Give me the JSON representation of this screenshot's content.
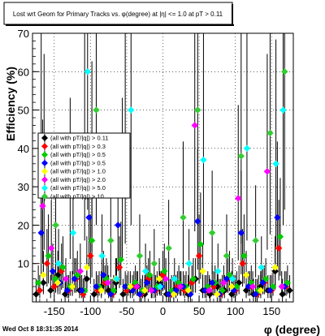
{
  "chart_data": {
    "type": "scatter",
    "title": "Lost wrt Geom for Primary Tracks vs. φ(degree) at |η| <= 1.0 at pT > 0.11",
    "xlabel": "φ (degree)",
    "ylabel": "Efficiency (%)",
    "xlim": [
      -180,
      180
    ],
    "ylim": [
      0,
      70
    ],
    "xticks": [
      -150,
      -100,
      -50,
      0,
      50,
      100,
      150
    ],
    "yticks": [
      10,
      20,
      30,
      40,
      50,
      60,
      70
    ],
    "grid": true,
    "legend_position": "left",
    "footer": "Wed Oct  8 18:31:35 2014",
    "series": [
      {
        "name": "(all with pT/|q|) > 0.11",
        "color": "#000000",
        "x": [
          -175,
          -165,
          -155,
          -145,
          -135,
          -125,
          -115,
          -105,
          -95,
          -85,
          -75,
          -65,
          -55,
          -45,
          -35,
          -25,
          -15,
          -5,
          5,
          15,
          25,
          35,
          45,
          55,
          65,
          75,
          85,
          95,
          105,
          115,
          125,
          135,
          145,
          155,
          165,
          175
        ],
        "y": [
          2,
          5,
          3,
          7,
          2,
          4,
          3,
          6,
          2,
          4,
          3,
          5,
          2,
          3,
          4,
          2,
          3,
          5,
          2,
          3,
          4,
          2,
          6,
          3,
          2,
          4,
          3,
          2,
          5,
          3,
          2,
          4,
          3,
          8,
          2,
          3
        ]
      },
      {
        "name": "(all with pT/|q|) > 0.3",
        "color": "#ff0000",
        "x": [
          -170,
          -160,
          -150,
          -140,
          -130,
          -120,
          -110,
          -100,
          -90,
          -80,
          -70,
          -60,
          -50,
          -40,
          -30,
          -20,
          -10,
          0,
          10,
          20,
          30,
          40,
          50,
          60,
          70,
          80,
          90,
          100,
          110,
          120,
          130,
          140,
          150,
          160,
          170
        ],
        "y": [
          3,
          10,
          4,
          8,
          3,
          6,
          2,
          12,
          3,
          5,
          2,
          9,
          3,
          4,
          2,
          6,
          3,
          7,
          2,
          4,
          3,
          5,
          12,
          3,
          4,
          2,
          6,
          3,
          10,
          4,
          2,
          5,
          3,
          14,
          4
        ]
      },
      {
        "name": "(all with pT/|q|) > 0.5",
        "color": "#00cc00",
        "x": [
          -172,
          -158,
          -148,
          -138,
          -128,
          -118,
          -108,
          -98,
          -88,
          -78,
          -68,
          -58,
          -48,
          -38,
          -28,
          -18,
          -8,
          2,
          12,
          22,
          32,
          42,
          52,
          62,
          72,
          82,
          92,
          102,
          112,
          122,
          132,
          142,
          152,
          162,
          172
        ],
        "y": [
          5,
          12,
          6,
          9,
          4,
          7,
          3,
          16,
          4,
          6,
          3,
          11,
          4,
          5,
          3,
          7,
          4,
          8,
          3,
          5,
          4,
          6,
          15,
          4,
          5,
          3,
          7,
          4,
          12,
          5,
          3,
          6,
          4,
          17,
          5
        ]
      },
      {
        "name": "(all with pT/|q|) > 0.5",
        "color": "#0000ff",
        "x": [
          -168,
          -152,
          -142,
          -132,
          -122,
          -112,
          -102,
          -92,
          -82,
          -72,
          -62,
          -52,
          -42,
          -32,
          -22,
          -12,
          -2,
          8,
          18,
          28,
          38,
          48,
          58,
          68,
          78,
          88,
          98,
          108,
          118,
          128,
          138,
          148,
          158,
          168
        ],
        "y": [
          18,
          8,
          5,
          3,
          6,
          3,
          22,
          4,
          7,
          2,
          20,
          4,
          3,
          2,
          5,
          3,
          4,
          2,
          3,
          4,
          2,
          21,
          3,
          5,
          2,
          6,
          3,
          18,
          4,
          2,
          5,
          3,
          22,
          4
        ]
      },
      {
        "name": "(all with pT/|q|) > 1.0",
        "color": "#ffff00",
        "x": [
          -165,
          -145,
          -125,
          -105,
          -85,
          -65,
          -45,
          -25,
          -5,
          15,
          35,
          55,
          75,
          95,
          115,
          135,
          155
        ],
        "y": [
          7,
          5,
          4,
          9,
          3,
          6,
          4,
          3,
          6,
          2,
          3,
          8,
          2,
          4,
          7,
          3,
          9
        ]
      },
      {
        "name": "(all with pT/|q|) > 2.0",
        "color": "#ff00ff",
        "x": [
          -166,
          -154,
          -134,
          -114,
          -98,
          -76,
          -56,
          -36,
          -16,
          4,
          24,
          44,
          64,
          84,
          104,
          124,
          144,
          164
        ],
        "y": [
          25,
          14,
          6,
          8,
          33,
          5,
          28,
          4,
          3,
          6,
          4,
          46,
          3,
          5,
          27,
          4,
          34,
          4
        ]
      },
      {
        "name": "(all with pT/|q|) > 5.0",
        "color": "#00ffff",
        "x": [
          -164,
          -144,
          -124,
          -104,
          -84,
          -64,
          -44,
          -24,
          -4,
          16,
          36,
          56,
          76,
          96,
          116,
          136,
          156,
          166
        ],
        "y": [
          34,
          10,
          18,
          60,
          12,
          6,
          50,
          8,
          4,
          6,
          10,
          37,
          8,
          6,
          40,
          9,
          36,
          50
        ]
      },
      {
        "name": "(all with pT/|q|) > 10",
        "color": "#33cc33",
        "x": [
          -168,
          -148,
          -128,
          -108,
          -92,
          -72,
          -52,
          -32,
          -12,
          8,
          28,
          48,
          68,
          88,
          108,
          128,
          148,
          168
        ],
        "y": [
          42,
          20,
          28,
          40,
          50,
          16,
          38,
          12,
          10,
          14,
          22,
          50,
          18,
          12,
          38,
          16,
          44,
          60
        ]
      }
    ]
  },
  "legend": {
    "entries": [
      {
        "label": "(all with pT/|q|) > 0.11",
        "color": "#000000"
      },
      {
        "label": "(all with pT/|q|) > 0.3",
        "color": "#ff0000"
      },
      {
        "label": "(all with pT/|q|) > 0.5",
        "color": "#00cc00"
      },
      {
        "label": "(all with pT/|q|) > 0.5",
        "color": "#0000ff"
      },
      {
        "label": "(all with pT/|q|) > 1.0",
        "color": "#ffff00"
      },
      {
        "label": "(all with pT/|q|) > 2.0",
        "color": "#ff00ff"
      },
      {
        "label": "(all with pT/|q|) > 5.0",
        "color": "#00ffff"
      },
      {
        "label": "(all with pT/|q|) > 10",
        "color": "#33cc33"
      }
    ]
  }
}
